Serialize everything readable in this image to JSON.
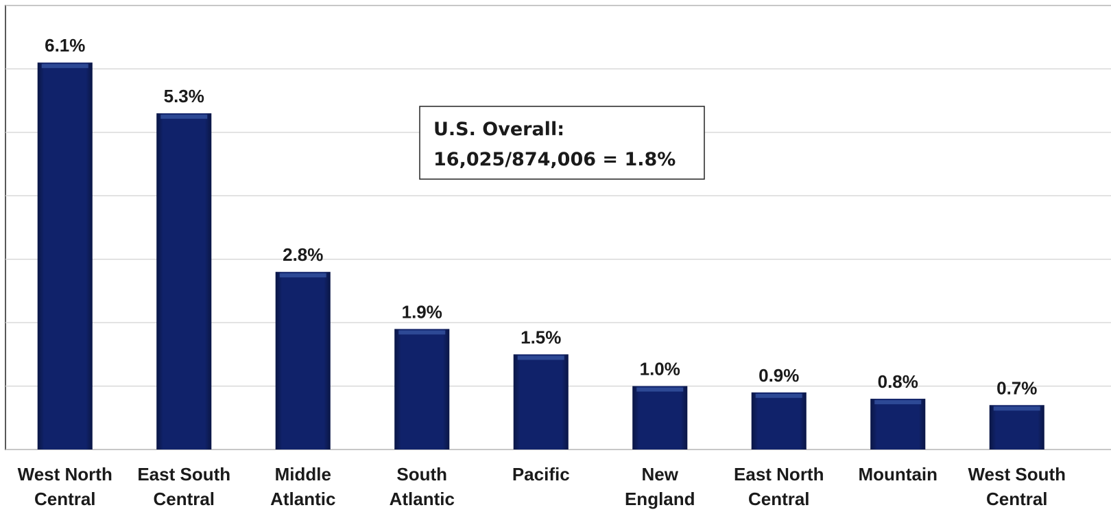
{
  "chart_data": {
    "type": "bar",
    "categories": [
      [
        "West North",
        "Central"
      ],
      [
        "East South",
        "Central"
      ],
      [
        "Middle",
        "Atlantic"
      ],
      [
        "South",
        "Atlantic"
      ],
      [
        "Pacific"
      ],
      [
        "New",
        "England"
      ],
      [
        "East North",
        "Central"
      ],
      [
        "Mountain"
      ],
      [
        "West South",
        "Central"
      ]
    ],
    "values": [
      6.1,
      5.3,
      2.8,
      1.9,
      1.5,
      1.0,
      0.9,
      0.8,
      0.7
    ],
    "value_labels": [
      "6.1%",
      "5.3%",
      "2.8%",
      "1.9%",
      "1.5%",
      "1.0%",
      "0.9%",
      "0.8%",
      "0.7%"
    ],
    "color": "#10226a",
    "ylim": [
      0,
      7
    ],
    "yticks": [
      0,
      1,
      2,
      3,
      4,
      5,
      6,
      7
    ],
    "grid": true,
    "tick_labels": false,
    "annotation": [
      "U.S. Overall:",
      "16,025/874,006 = 1.8%"
    ]
  }
}
